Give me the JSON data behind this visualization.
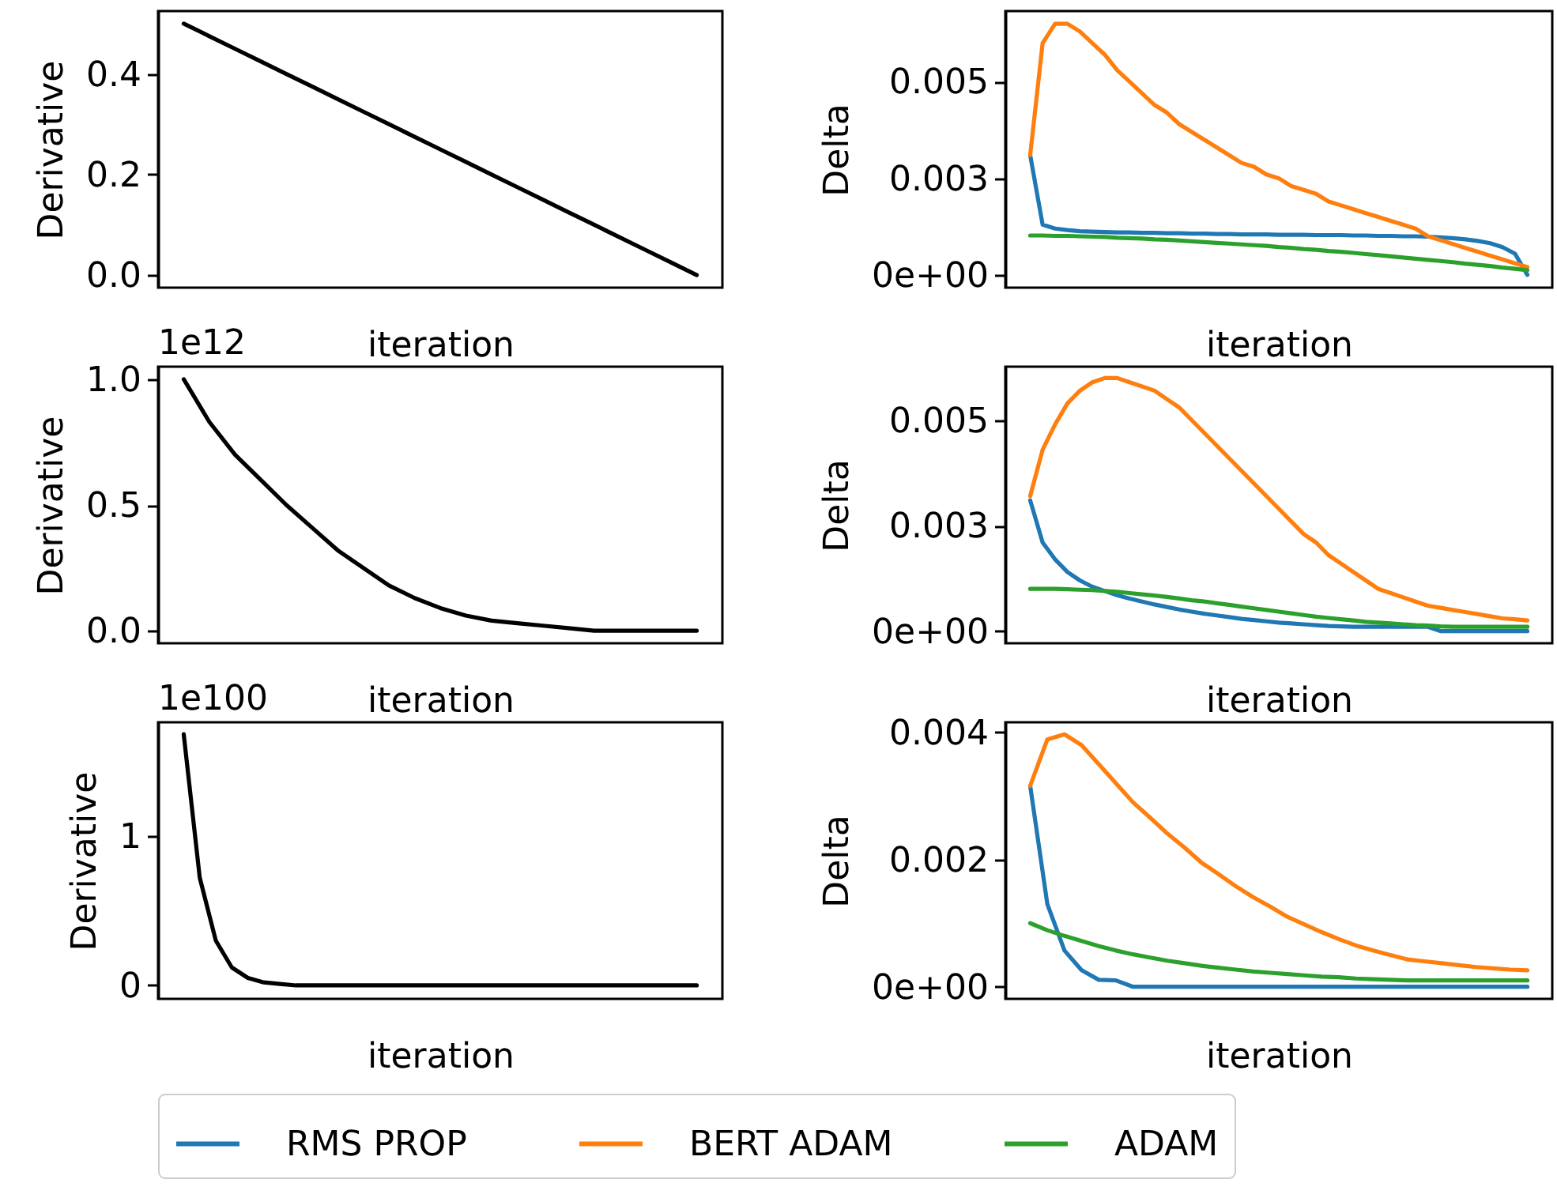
{
  "chart_data": [
    {
      "type": "line",
      "xlabel": "iteration",
      "ylabel": "Derivative",
      "tick_labels": "y",
      "categories": [
        null,
        null,
        null,
        null,
        null,
        null,
        null,
        null,
        null,
        null,
        null,
        null,
        null,
        null,
        null,
        null,
        null,
        null,
        null,
        null,
        null
      ],
      "ylim": [
        -0.025,
        0.525
      ],
      "yticks": [
        {
          "value": 0,
          "label": "0.0"
        },
        {
          "value": 0.2,
          "label": "0.2"
        },
        {
          "value": 0.4,
          "label": "0.4"
        }
      ],
      "series": [
        {
          "color": "#000000",
          "values": [
            0.5,
            0.475,
            0.45,
            0.425,
            0.4,
            0.375,
            0.35,
            0.325,
            0.3,
            0.275,
            0.25,
            0.225,
            0.2,
            0.175,
            0.15,
            0.125,
            0.1,
            0.075,
            0.05,
            0.025,
            0
          ]
        }
      ]
    },
    {
      "type": "line",
      "xlabel": "iteration",
      "ylabel": "Delta",
      "tick_labels": "y",
      "legend": "bottom",
      "categories": [
        null,
        null,
        null,
        null,
        null,
        null,
        null,
        null,
        null,
        null,
        null,
        null,
        null,
        null,
        null,
        null,
        null,
        null,
        null,
        null,
        null,
        null,
        null,
        null,
        null,
        null,
        null,
        null,
        null,
        null,
        null,
        null,
        null,
        null,
        null,
        null,
        null,
        null,
        null,
        null,
        null
      ],
      "ylim": [
        -0.00033,
        0.00683
      ],
      "yticks": [
        {
          "value": 0,
          "label": "0e+00"
        },
        {
          "value": 0.0025,
          "label": "0.003"
        },
        0.005
      ],
      "series": [
        {
          "name": "RMS PROP",
          "color": "#1f77b4",
          "values": [
            0.0031,
            0.0013,
            0.0012,
            0.00116,
            0.00113,
            0.00112,
            0.00111,
            0.0011,
            0.0011,
            0.00109,
            0.00109,
            0.00108,
            0.00108,
            0.00107,
            0.00107,
            0.00106,
            0.00106,
            0.00105,
            0.00105,
            0.00105,
            0.00104,
            0.00104,
            0.00104,
            0.00103,
            0.00103,
            0.00103,
            0.00102,
            0.00102,
            0.00101,
            0.00101,
            0.001,
            0.001,
            0.00099,
            0.00097,
            0.00095,
            0.00092,
            0.00088,
            0.00082,
            0.00072,
            0.00055,
            0
          ]
        },
        {
          "name": "BERT ADAM",
          "color": "#ff7f0e",
          "values": [
            0.0031,
            0.006,
            0.0065,
            0.0065,
            0.0063,
            0.006,
            0.0057,
            0.0053,
            0.005,
            0.0047,
            0.0044,
            0.0042,
            0.0039,
            0.0037,
            0.0035,
            0.0033,
            0.0031,
            0.0029,
            0.0028,
            0.0026,
            0.0025,
            0.0023,
            0.0022,
            0.0021,
            0.0019,
            0.0018,
            0.0017,
            0.0016,
            0.0015,
            0.0014,
            0.0013,
            0.0012,
            0.001,
            0.0009,
            0.0008,
            0.0007,
            0.0006,
            0.0005,
            0.0004,
            0.0003,
            0.0002
          ]
        },
        {
          "name": "ADAM",
          "color": "#2ca02c",
          "values": [
            0.00102,
            0.00102,
            0.00101,
            0.00101,
            0.001,
            0.00099,
            0.00098,
            0.00096,
            0.00095,
            0.00094,
            0.00092,
            0.00091,
            0.00089,
            0.00087,
            0.00085,
            0.00083,
            0.00081,
            0.00079,
            0.00077,
            0.00075,
            0.00072,
            0.0007,
            0.00067,
            0.00065,
            0.00062,
            0.0006,
            0.00057,
            0.00054,
            0.00051,
            0.00048,
            0.00045,
            0.00042,
            0.00039,
            0.00036,
            0.00033,
            0.00029,
            0.00026,
            0.00023,
            0.00019,
            0.00016,
            0.00012
          ]
        }
      ]
    },
    {
      "type": "line",
      "xlabel": "iteration",
      "ylabel": "Derivative",
      "tick_labels": "y",
      "annotations": [
        "1e12"
      ],
      "categories": [
        null,
        null,
        null,
        null,
        null,
        null,
        null,
        null,
        null,
        null,
        null,
        null,
        null,
        null,
        null,
        null,
        null,
        null,
        null,
        null,
        null
      ],
      "ylim": [
        -0.05,
        1.05
      ],
      "yticks": [
        {
          "value": 0,
          "label": "0.0"
        },
        {
          "value": 0.5,
          "label": "0.5"
        },
        {
          "value": 1,
          "label": "1.0"
        }
      ],
      "series": [
        {
          "color": "#000000",
          "values": [
            1,
            0.83,
            0.7,
            0.6,
            0.5,
            0.41,
            0.32,
            0.25,
            0.18,
            0.13,
            0.09,
            0.06,
            0.04,
            0.03,
            0.02,
            0.01,
            0,
            0,
            0,
            0,
            0
          ]
        }
      ]
    },
    {
      "type": "line",
      "xlabel": "iteration",
      "ylabel": "Delta",
      "tick_labels": "y",
      "legend": "bottom",
      "categories": [
        null,
        null,
        null,
        null,
        null,
        null,
        null,
        null,
        null,
        null,
        null,
        null,
        null,
        null,
        null,
        null,
        null,
        null,
        null,
        null,
        null,
        null,
        null,
        null,
        null,
        null,
        null,
        null,
        null,
        null,
        null,
        null,
        null,
        null,
        null,
        null,
        null,
        null,
        null,
        null,
        null
      ],
      "ylim": [
        -0.00029,
        0.00627
      ],
      "yticks": [
        {
          "value": 0,
          "label": "0e+00"
        },
        {
          "value": 0.0025,
          "label": "0.003"
        },
        0.005
      ],
      "series": [
        {
          "name": "RMS PROP",
          "color": "#1f77b4",
          "values": [
            0.0031,
            0.0021,
            0.0017,
            0.0014,
            0.0012,
            0.00105,
            0.00095,
            0.00085,
            0.00077,
            0.0007,
            0.00063,
            0.00057,
            0.00051,
            0.00046,
            0.00041,
            0.00037,
            0.00033,
            0.00029,
            0.00026,
            0.00023,
            0.0002,
            0.00018,
            0.00016,
            0.00014,
            0.00012,
            0.00011,
            0.0001,
            0.0001,
            0.0001,
            0.0001,
            0.0001,
            0.0001,
            0.0001,
            0,
            0,
            0,
            0,
            0,
            0,
            0,
            0
          ]
        },
        {
          "name": "BERT ADAM",
          "color": "#ff7f0e",
          "values": [
            0.0032,
            0.0043,
            0.0049,
            0.0054,
            0.0057,
            0.0059,
            0.006,
            0.006,
            0.0059,
            0.0058,
            0.0057,
            0.0055,
            0.0053,
            0.005,
            0.0047,
            0.0044,
            0.0041,
            0.0038,
            0.0035,
            0.0032,
            0.0029,
            0.0026,
            0.0023,
            0.0021,
            0.0018,
            0.0016,
            0.0014,
            0.0012,
            0.001,
            0.0009,
            0.0008,
            0.0007,
            0.0006,
            0.00055,
            0.0005,
            0.00045,
            0.0004,
            0.00035,
            0.0003,
            0.00028,
            0.00025
          ]
        },
        {
          "name": "ADAM",
          "color": "#2ca02c",
          "values": [
            0.001,
            0.001,
            0.001,
            0.00099,
            0.00098,
            0.00097,
            0.00095,
            0.00093,
            0.0009,
            0.00087,
            0.00084,
            0.00081,
            0.00077,
            0.00073,
            0.0007,
            0.00066,
            0.00062,
            0.00058,
            0.00054,
            0.0005,
            0.00046,
            0.00042,
            0.00038,
            0.00034,
            0.00031,
            0.00028,
            0.00025,
            0.00022,
            0.0002,
            0.00018,
            0.00016,
            0.00014,
            0.00013,
            0.00011,
            0.0001,
            0.0001,
            0.0001,
            0.0001,
            0.0001,
            0.0001,
            0.0001
          ]
        }
      ]
    },
    {
      "type": "line",
      "xlabel": "iteration",
      "ylabel": "Derivative",
      "tick_labels": "y",
      "annotations": [
        "1e100"
      ],
      "categories": [
        null,
        null,
        null,
        null,
        null,
        null,
        null,
        null,
        null,
        null,
        null,
        null,
        null,
        null,
        null,
        null,
        null,
        null,
        null,
        null,
        null,
        null,
        null,
        null,
        null,
        null,
        null,
        null,
        null,
        null,
        null,
        null,
        null
      ],
      "ylim": [
        -0.09,
        1.76
      ],
      "yticks": [
        0,
        1
      ],
      "series": [
        {
          "color": "#000000",
          "values": [
            1.68,
            0.72,
            0.3,
            0.12,
            0.05,
            0.02,
            0.01,
            0,
            0,
            0,
            0,
            0,
            0,
            0,
            0,
            0,
            0,
            0,
            0,
            0,
            0,
            0,
            0,
            0,
            0,
            0,
            0,
            0,
            0,
            0,
            0,
            0,
            0
          ]
        }
      ]
    },
    {
      "type": "line",
      "xlabel": "iteration",
      "ylabel": "Delta",
      "tick_labels": "y",
      "legend": "bottom",
      "categories": [
        null,
        null,
        null,
        null,
        null,
        null,
        null,
        null,
        null,
        null,
        null,
        null,
        null,
        null,
        null,
        null,
        null,
        null,
        null,
        null,
        null,
        null,
        null,
        null,
        null,
        null,
        null,
        null,
        null,
        null
      ],
      "ylim": [
        -0.00019,
        0.00416
      ],
      "yticks": [
        {
          "value": 0,
          "label": "0e+00"
        },
        0.002,
        0.004
      ],
      "series": [
        {
          "name": "RMS PROP",
          "color": "#1f77b4",
          "values": [
            0.00316,
            0.0013,
            0.00057,
            0.00026,
            0.00011,
            0.0001,
            0,
            0,
            0,
            0,
            0,
            0,
            0,
            0,
            0,
            0,
            0,
            0,
            0,
            0,
            0,
            0,
            0,
            0,
            0,
            0,
            0,
            0,
            0,
            0
          ]
        },
        {
          "name": "BERT ADAM",
          "color": "#ff7f0e",
          "values": [
            0.00316,
            0.00389,
            0.00397,
            0.0038,
            0.0035,
            0.0032,
            0.0029,
            0.00266,
            0.00241,
            0.00219,
            0.00195,
            0.00177,
            0.00158,
            0.00141,
            0.00126,
            0.0011,
            0.00098,
            0.00086,
            0.00075,
            0.00065,
            0.00057,
            0.0005,
            0.00043,
            0.0004,
            0.00037,
            0.00034,
            0.00031,
            0.00029,
            0.00027,
            0.00026
          ]
        },
        {
          "name": "ADAM",
          "color": "#2ca02c",
          "values": [
            0.001,
            0.00089,
            0.0008,
            0.00072,
            0.00064,
            0.00057,
            0.00051,
            0.00046,
            0.00041,
            0.00037,
            0.00033,
            0.0003,
            0.00027,
            0.00024,
            0.00022,
            0.0002,
            0.00018,
            0.00016,
            0.00015,
            0.00013,
            0.00012,
            0.00011,
            0.0001,
            0.0001,
            0.0001,
            0.0001,
            0.0001,
            0.0001,
            0.0001,
            0.0001
          ]
        }
      ]
    }
  ]
}
